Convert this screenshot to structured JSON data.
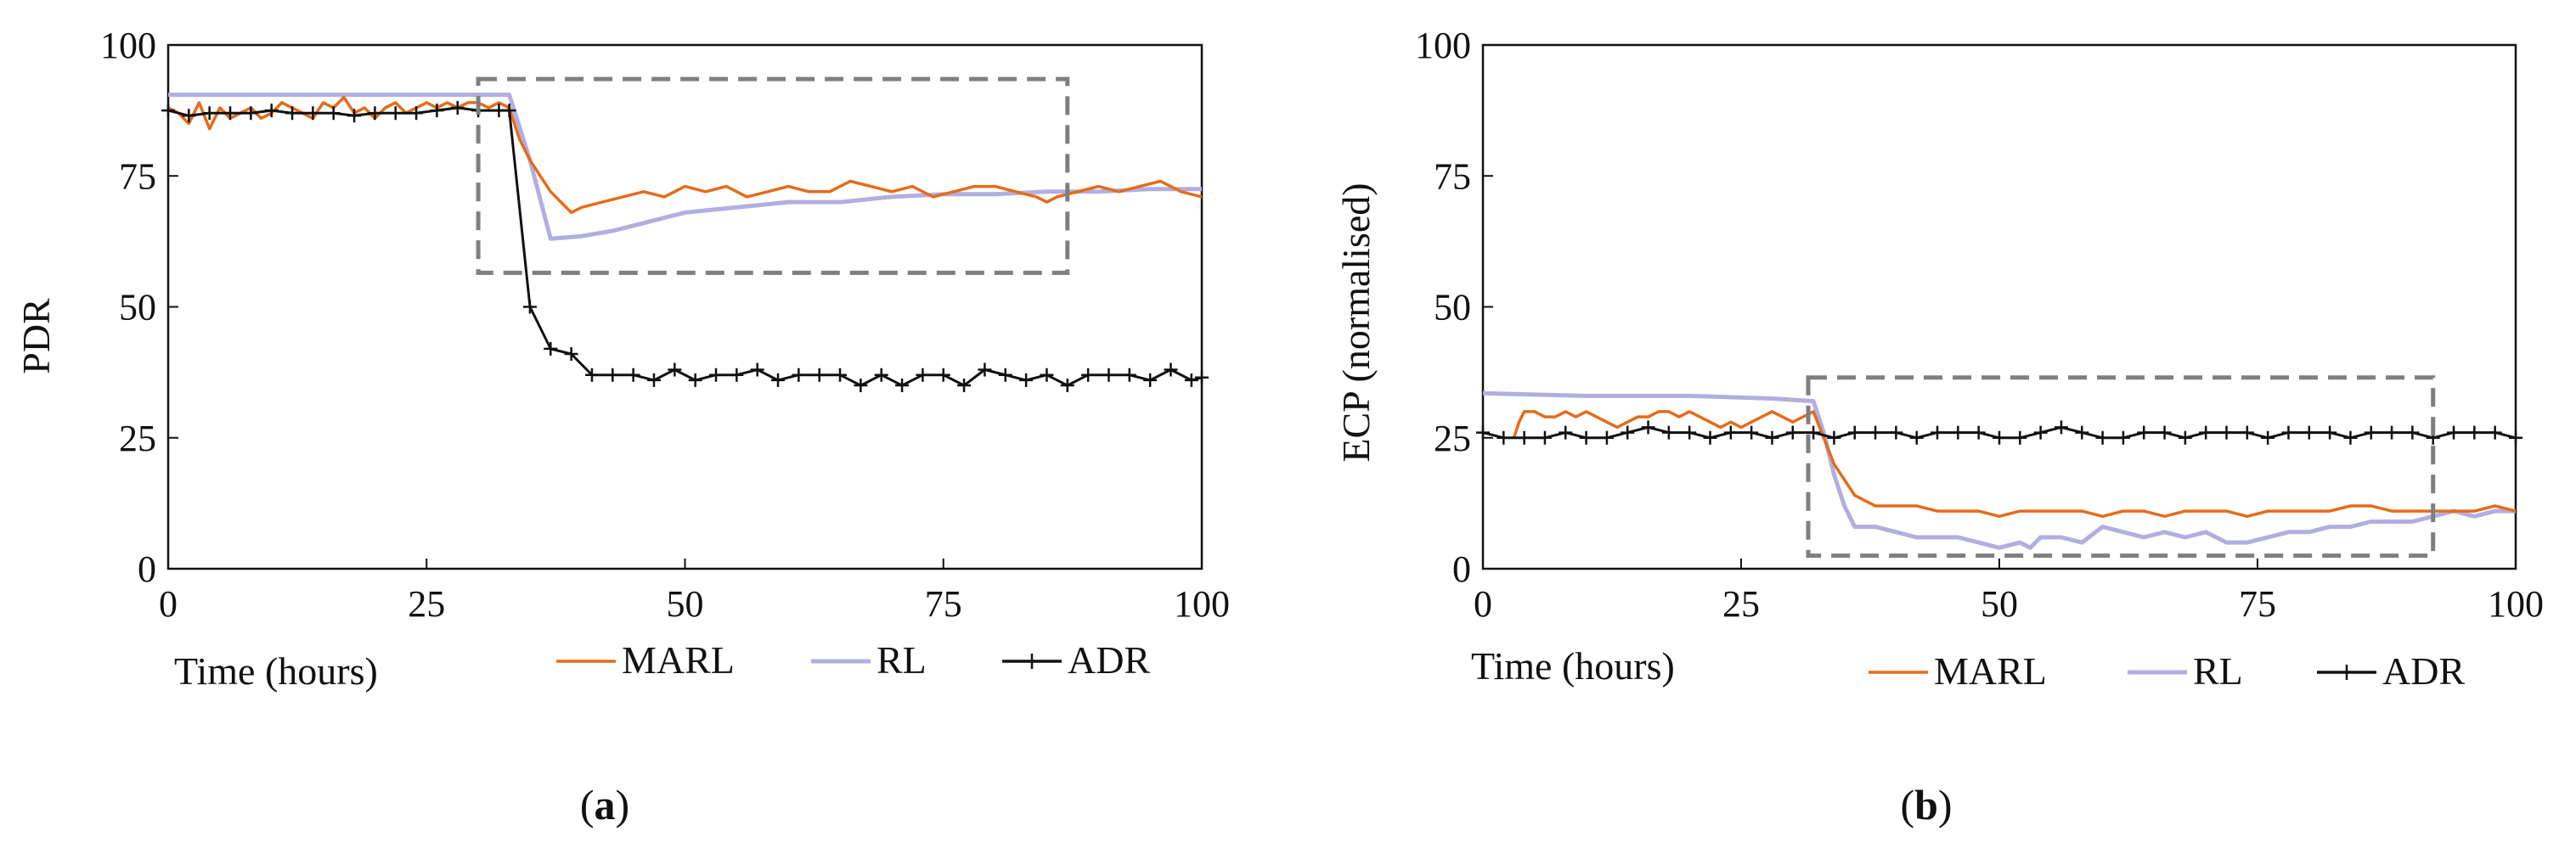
{
  "chart_data": [
    {
      "type": "line",
      "panel_label": "a",
      "title": "",
      "xlabel": "Time (hours)",
      "ylabel": "PDR",
      "xlim": [
        0,
        100
      ],
      "ylim": [
        0,
        100
      ],
      "xticks": [
        "0",
        "25",
        "50",
        "75",
        "100"
      ],
      "yticks": [
        "0",
        "25",
        "50",
        "75",
        "100"
      ],
      "grid": false,
      "legend_position": "bottom-right, beside x-axis label",
      "highlight_box": {
        "x": [
          30,
          87
        ],
        "y": [
          56.5,
          93.5
        ]
      },
      "series": [
        {
          "name": "MARL",
          "color": "#e46c1b",
          "marker": "none",
          "x": [
            0,
            1,
            2,
            3,
            4,
            5,
            6,
            7,
            8,
            9,
            10,
            11,
            12,
            13,
            14,
            15,
            16,
            17,
            18,
            19,
            20,
            21,
            22,
            23,
            24,
            25,
            26,
            27,
            28,
            29,
            30,
            31,
            32,
            33,
            34,
            35,
            36,
            37,
            38,
            39,
            40,
            42,
            44,
            46,
            48,
            50,
            52,
            54,
            56,
            58,
            60,
            62,
            64,
            66,
            68,
            70,
            72,
            74,
            76,
            78,
            80,
            82,
            84,
            85,
            86,
            88,
            90,
            92,
            94,
            96,
            98,
            100
          ],
          "y": [
            88,
            87,
            85,
            89,
            84,
            88,
            86,
            87,
            88,
            86,
            87,
            89,
            88,
            87,
            86,
            89,
            88,
            90,
            87,
            88,
            86,
            88,
            89,
            87,
            88,
            89,
            88,
            89,
            88,
            89,
            89,
            88,
            89,
            88,
            82,
            78,
            75,
            72,
            70,
            68,
            69,
            70,
            71,
            72,
            71,
            73,
            72,
            73,
            71,
            72,
            73,
            72,
            72,
            74,
            73,
            72,
            73,
            71,
            72,
            73,
            73,
            72,
            71,
            70,
            71,
            72,
            73,
            72,
            73,
            74,
            72,
            71
          ]
        },
        {
          "name": "RL",
          "color": "#b3aee0",
          "marker": "none",
          "x": [
            0,
            10,
            20,
            30,
            33,
            35,
            37,
            40,
            43,
            46,
            50,
            55,
            60,
            65,
            70,
            75,
            80,
            85,
            90,
            95,
            100
          ],
          "y": [
            90.5,
            90.5,
            90.5,
            90.5,
            90.5,
            78,
            63,
            63.5,
            64.5,
            66,
            68,
            69,
            70,
            70,
            71,
            71.5,
            71.5,
            72,
            72,
            72.5,
            72.5
          ]
        },
        {
          "name": "ADR",
          "color": "#111111",
          "marker": "plus",
          "x": [
            0,
            2,
            4,
            6,
            8,
            10,
            12,
            14,
            16,
            18,
            20,
            22,
            24,
            26,
            28,
            30,
            32,
            33,
            35,
            37,
            39,
            41,
            43,
            45,
            47,
            49,
            51,
            53,
            55,
            57,
            59,
            61,
            63,
            65,
            67,
            69,
            71,
            73,
            75,
            77,
            79,
            81,
            83,
            85,
            87,
            89,
            91,
            93,
            95,
            97,
            99,
            100
          ],
          "y": [
            87.5,
            86.5,
            87,
            87,
            87,
            87.5,
            87,
            87,
            87,
            86.5,
            87,
            87,
            87,
            87.5,
            88,
            87.5,
            87.5,
            87.5,
            50,
            42,
            41,
            37,
            37,
            37,
            36,
            38,
            36,
            37,
            37,
            38,
            36,
            37,
            37,
            37,
            35,
            37,
            35,
            37,
            37,
            35,
            38,
            37,
            36,
            37,
            35,
            37,
            37,
            37,
            36,
            38,
            36,
            36.5
          ]
        }
      ]
    },
    {
      "type": "line",
      "panel_label": "b",
      "title": "",
      "xlabel": "Time (hours)",
      "ylabel": "ECP (normalised)",
      "xlim": [
        0,
        100
      ],
      "ylim": [
        0,
        100
      ],
      "xticks": [
        "0",
        "25",
        "50",
        "75",
        "100"
      ],
      "yticks": [
        "0",
        "25",
        "50",
        "75",
        "100"
      ],
      "grid": false,
      "legend_position": "bottom-right, below x-axis label",
      "highlight_box": {
        "x": [
          31.5,
          92
        ],
        "y": [
          2.5,
          36.5
        ]
      },
      "series": [
        {
          "name": "MARL",
          "color": "#e46c1b",
          "marker": "none",
          "x": [
            3,
            3.5,
            4,
            5,
            6,
            7,
            8,
            9,
            10,
            11,
            12,
            13,
            14,
            15,
            16,
            17,
            18,
            19,
            20,
            21,
            22,
            23,
            24,
            25,
            26,
            27,
            28,
            29,
            30,
            31,
            32,
            33,
            34,
            35,
            36,
            37,
            38,
            40,
            42,
            44,
            46,
            48,
            50,
            52,
            54,
            56,
            58,
            60,
            62,
            64,
            66,
            68,
            70,
            72,
            74,
            76,
            78,
            80,
            82,
            84,
            86,
            88,
            90,
            92,
            94,
            96,
            98,
            100
          ],
          "y": [
            25,
            28,
            30,
            30,
            29,
            29,
            30,
            29,
            30,
            29,
            28,
            27,
            28,
            29,
            29,
            30,
            30,
            29,
            30,
            29,
            28,
            27,
            28,
            27,
            28,
            29,
            30,
            29,
            28,
            29,
            30,
            25,
            20,
            17,
            14,
            13,
            12,
            12,
            12,
            11,
            11,
            11,
            10,
            11,
            11,
            11,
            11,
            10,
            11,
            11,
            10,
            11,
            11,
            11,
            10,
            11,
            11,
            11,
            11,
            12,
            12,
            11,
            11,
            11,
            11,
            11,
            12,
            11
          ]
        },
        {
          "name": "RL",
          "color": "#b3aee0",
          "marker": "none",
          "x": [
            0,
            10,
            20,
            28,
            32,
            33,
            34,
            35,
            36,
            38,
            40,
            42,
            44,
            46,
            48,
            50,
            52,
            53,
            54,
            56,
            58,
            60,
            62,
            64,
            66,
            68,
            70,
            72,
            74,
            76,
            78,
            80,
            82,
            84,
            86,
            88,
            90,
            92,
            94,
            96,
            98,
            100
          ],
          "y": [
            33.5,
            33,
            33,
            32.5,
            32,
            26,
            18,
            12,
            8,
            8,
            7,
            6,
            6,
            6,
            5,
            4,
            5,
            4,
            6,
            6,
            5,
            8,
            7,
            6,
            7,
            6,
            7,
            5,
            5,
            6,
            7,
            7,
            8,
            8,
            9,
            9,
            9,
            10,
            11,
            10,
            11,
            11
          ]
        },
        {
          "name": "ADR",
          "color": "#111111",
          "marker": "plus",
          "x": [
            0,
            2,
            4,
            6,
            8,
            10,
            12,
            14,
            16,
            18,
            20,
            22,
            24,
            26,
            28,
            30,
            32,
            34,
            36,
            38,
            40,
            42,
            44,
            46,
            48,
            50,
            52,
            54,
            56,
            58,
            60,
            62,
            64,
            66,
            68,
            70,
            72,
            74,
            76,
            78,
            80,
            82,
            84,
            86,
            88,
            90,
            92,
            94,
            96,
            98,
            100
          ],
          "y": [
            26,
            25,
            25,
            25,
            26,
            25,
            25,
            26,
            27,
            26,
            26,
            25,
            26,
            26,
            25,
            26,
            26,
            25,
            26,
            26,
            26,
            25,
            26,
            26,
            26,
            25,
            25,
            26,
            27,
            26,
            25,
            25,
            26,
            26,
            25,
            26,
            26,
            26,
            25,
            26,
            26,
            26,
            25,
            26,
            26,
            26,
            25,
            26,
            26,
            26,
            25
          ]
        }
      ]
    }
  ]
}
